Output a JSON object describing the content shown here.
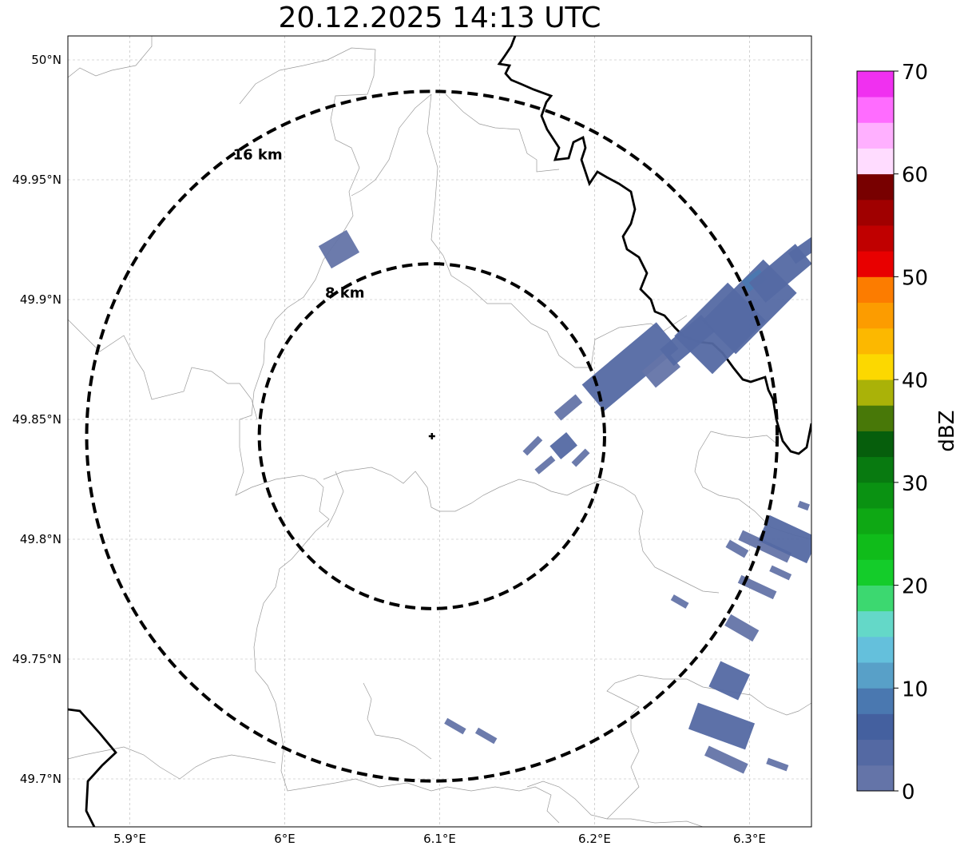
{
  "title": "20.12.2025 14:13 UTC",
  "map": {
    "lon_range": [
      5.86,
      6.34
    ],
    "lat_range": [
      49.68,
      50.01
    ],
    "radar_center": {
      "lon": 6.095,
      "lat": 49.843
    },
    "lat_ticks": [
      {
        "value": 50.0,
        "label": "50°N"
      },
      {
        "value": 49.95,
        "label": "49.95°N"
      },
      {
        "value": 49.9,
        "label": "49.9°N"
      },
      {
        "value": 49.85,
        "label": "49.85°N"
      },
      {
        "value": 49.8,
        "label": "49.8°N"
      },
      {
        "value": 49.75,
        "label": "49.75°N"
      },
      {
        "value": 49.7,
        "label": "49.7°N"
      }
    ],
    "lon_ticks": [
      {
        "value": 5.9,
        "label": "5.9°E"
      },
      {
        "value": 6.0,
        "label": "6°E"
      },
      {
        "value": 6.1,
        "label": "6.1°E"
      },
      {
        "value": 6.2,
        "label": "6.2°E"
      },
      {
        "value": 6.3,
        "label": "6.3°E"
      }
    ],
    "rings": [
      {
        "radius_km": 8,
        "label": "8 km"
      },
      {
        "radius_km": 16,
        "label": "16 km"
      }
    ],
    "grid": true
  },
  "colorbar": {
    "label": "dBZ",
    "min": 0,
    "max": 70,
    "tick_labels": [
      "0",
      "10",
      "20",
      "30",
      "40",
      "50",
      "60",
      "70"
    ],
    "colors": [
      "#6474a8",
      "#5469a3",
      "#44609f",
      "#4a78b0",
      "#58a0c8",
      "#64c0dc",
      "#64d8c8",
      "#3cd870",
      "#14cc2a",
      "#10bc1a",
      "#0ea814",
      "#0a9212",
      "#087a10",
      "#065e0c",
      "#487808",
      "#aab208",
      "#fcd800",
      "#fcb800",
      "#fc9c00",
      "#fc7c00",
      "#e80000",
      "#c00000",
      "#a00000",
      "#780000",
      "#ffdcff",
      "#ffb0ff",
      "#ff6cff",
      "#f030f0"
    ]
  },
  "reflectivity_cells": [
    {
      "lon": 6.035,
      "lat": 49.921,
      "dbz": 2,
      "angle": -30,
      "w": 1.5,
      "h": 1.2
    },
    {
      "lon": 6.223,
      "lat": 49.872,
      "dbz": 3,
      "angle": -40,
      "w": 4.5,
      "h": 1.6
    },
    {
      "lon": 6.243,
      "lat": 49.871,
      "dbz": 2,
      "angle": -40,
      "w": 1.5,
      "h": 1.0
    },
    {
      "lon": 6.26,
      "lat": 49.883,
      "dbz": 3,
      "angle": -40,
      "w": 2.5,
      "h": 1.0
    },
    {
      "lon": 6.281,
      "lat": 49.888,
      "dbz": 4,
      "angle": -45,
      "w": 3.5,
      "h": 2.5
    },
    {
      "lon": 6.3,
      "lat": 49.897,
      "dbz": 4,
      "angle": -45,
      "w": 4.0,
      "h": 2.2
    },
    {
      "lon": 6.303,
      "lat": 49.908,
      "dbz": 8,
      "angle": -35,
      "w": 1.0,
      "h": 0.6
    },
    {
      "lon": 6.32,
      "lat": 49.911,
      "dbz": 4,
      "angle": -40,
      "w": 2.8,
      "h": 1.2
    },
    {
      "lon": 6.336,
      "lat": 49.921,
      "dbz": 3,
      "angle": -35,
      "w": 1.5,
      "h": 0.6
    },
    {
      "lon": 6.183,
      "lat": 49.855,
      "dbz": 2,
      "angle": -40,
      "w": 1.3,
      "h": 0.5
    },
    {
      "lon": 6.16,
      "lat": 49.839,
      "dbz": 2,
      "angle": -45,
      "w": 1.0,
      "h": 0.3
    },
    {
      "lon": 6.168,
      "lat": 49.831,
      "dbz": 2,
      "angle": -40,
      "w": 1.0,
      "h": 0.3
    },
    {
      "lon": 6.18,
      "lat": 49.839,
      "dbz": 3,
      "angle": -40,
      "w": 1.0,
      "h": 0.8
    },
    {
      "lon": 6.191,
      "lat": 49.834,
      "dbz": 2,
      "angle": -45,
      "w": 0.9,
      "h": 0.3
    },
    {
      "lon": 6.31,
      "lat": 49.797,
      "dbz": 2,
      "angle": 25,
      "w": 2.5,
      "h": 0.5
    },
    {
      "lon": 6.325,
      "lat": 49.8,
      "dbz": 3,
      "angle": 25,
      "w": 2.5,
      "h": 1.3
    },
    {
      "lon": 6.292,
      "lat": 49.796,
      "dbz": 2,
      "angle": 30,
      "w": 1.0,
      "h": 0.4
    },
    {
      "lon": 6.305,
      "lat": 49.78,
      "dbz": 2,
      "angle": 25,
      "w": 1.8,
      "h": 0.4
    },
    {
      "lon": 6.32,
      "lat": 49.786,
      "dbz": 2,
      "angle": 25,
      "w": 1.0,
      "h": 0.3
    },
    {
      "lon": 6.295,
      "lat": 49.763,
      "dbz": 2,
      "angle": 30,
      "w": 1.5,
      "h": 0.6
    },
    {
      "lon": 6.287,
      "lat": 49.741,
      "dbz": 3,
      "angle": 25,
      "w": 1.5,
      "h": 1.3
    },
    {
      "lon": 6.255,
      "lat": 49.774,
      "dbz": 2,
      "angle": 30,
      "w": 0.8,
      "h": 0.3
    },
    {
      "lon": 6.282,
      "lat": 49.722,
      "dbz": 3,
      "angle": 20,
      "w": 2.8,
      "h": 1.3
    },
    {
      "lon": 6.285,
      "lat": 49.708,
      "dbz": 2,
      "angle": 25,
      "w": 2.0,
      "h": 0.5
    },
    {
      "lon": 6.11,
      "lat": 49.722,
      "dbz": 2,
      "angle": 30,
      "w": 1.0,
      "h": 0.3
    },
    {
      "lon": 6.13,
      "lat": 49.718,
      "dbz": 2,
      "angle": 30,
      "w": 1.0,
      "h": 0.3
    },
    {
      "lon": 6.318,
      "lat": 49.706,
      "dbz": 2,
      "angle": 20,
      "w": 1.0,
      "h": 0.3
    },
    {
      "lon": 6.335,
      "lat": 49.814,
      "dbz": 2,
      "angle": 20,
      "w": 0.5,
      "h": 0.3
    }
  ]
}
